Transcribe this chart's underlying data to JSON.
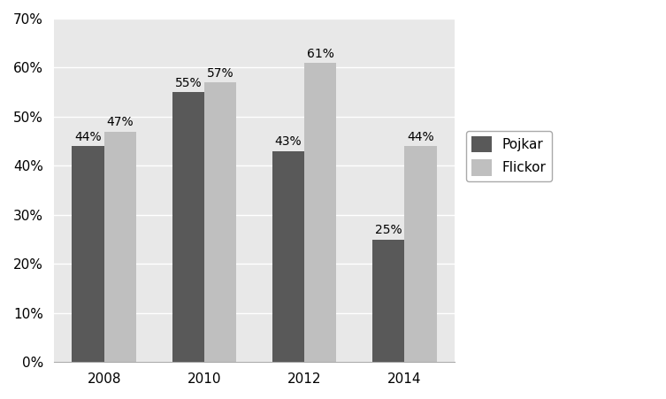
{
  "years": [
    "2008",
    "2010",
    "2012",
    "2014"
  ],
  "pojkar": [
    0.44,
    0.55,
    0.43,
    0.25
  ],
  "flickor": [
    0.47,
    0.57,
    0.61,
    0.44
  ],
  "bar_color_pojkar": "#595959",
  "bar_color_flickor": "#bfbfbf",
  "legend_pojkar": "Pojkar",
  "legend_flickor": "Flickor",
  "ylim": [
    0.0,
    0.7
  ],
  "yticks": [
    0.0,
    0.1,
    0.2,
    0.3,
    0.4,
    0.5,
    0.6,
    0.7
  ],
  "figure_background_color": "#ffffff",
  "plot_background_color": "#e8e8e8",
  "grid_color": "#ffffff",
  "bar_width": 0.32,
  "label_fontsize": 10,
  "tick_fontsize": 11,
  "legend_fontsize": 11
}
